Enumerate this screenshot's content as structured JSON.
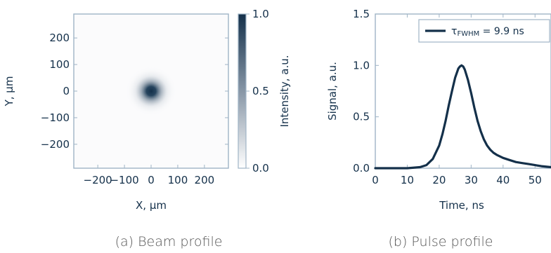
{
  "chart_data": [
    {
      "type": "heatmap",
      "caption": "(a) Beam profile",
      "xlabel": "X, µm",
      "ylabel": "Y, µm",
      "xlim": [
        -290,
        290
      ],
      "ylim": [
        -290,
        290
      ],
      "xticks": [
        "−200",
        "−100",
        "0",
        "100",
        "200"
      ],
      "xtick_values": [
        -200,
        -100,
        0,
        100,
        200
      ],
      "yticks": [
        "200",
        "100",
        "0",
        "−100",
        "−200"
      ],
      "ytick_values": [
        200,
        100,
        0,
        -100,
        -200
      ],
      "colorbar": {
        "label": "Intensity, a.u.",
        "ticks": [
          "1.0",
          "0.5",
          "0.0"
        ],
        "tick_values": [
          1.0,
          0.5,
          0.0
        ],
        "range": [
          0,
          1
        ]
      },
      "beam": {
        "center": [
          0,
          0
        ],
        "sigma_um": 45,
        "peak": 1.0
      },
      "colors": {
        "high": "#14304a",
        "low": "#ffffff",
        "frame": "#9fb4c6"
      }
    },
    {
      "type": "line",
      "caption": "(b) Pulse profile",
      "xlabel": "Time, ns",
      "ylabel": "Signal, a.u.",
      "xlim": [
        0,
        55
      ],
      "ylim": [
        0,
        1.5
      ],
      "xticks": [
        "0",
        "10",
        "20",
        "30",
        "40",
        "50"
      ],
      "xtick_values": [
        0,
        10,
        20,
        30,
        40,
        50
      ],
      "yticks": [
        "1.5",
        "1.0",
        "0.5",
        "0.0"
      ],
      "ytick_values": [
        1.5,
        1.0,
        0.5,
        0.0
      ],
      "legend": {
        "placement": "top-right",
        "text": "τ",
        "subscript": "FWHM",
        "value": " = 9.9 ns"
      },
      "series": [
        {
          "x": [
            0,
            5,
            10,
            14,
            16,
            18,
            20,
            21,
            22,
            23,
            24,
            25,
            26,
            26.5,
            27,
            27.5,
            28,
            29,
            30,
            31,
            32,
            33,
            34,
            35,
            36,
            37,
            38,
            40,
            42,
            44,
            46,
            48,
            50,
            52,
            55
          ],
          "values": [
            0.0,
            0.0,
            0.0,
            0.01,
            0.03,
            0.09,
            0.22,
            0.33,
            0.46,
            0.61,
            0.75,
            0.88,
            0.97,
            0.99,
            1.0,
            0.99,
            0.96,
            0.86,
            0.73,
            0.59,
            0.46,
            0.36,
            0.28,
            0.22,
            0.18,
            0.15,
            0.13,
            0.1,
            0.08,
            0.06,
            0.05,
            0.04,
            0.03,
            0.02,
            0.01
          ]
        }
      ],
      "colors": {
        "line": "#14304a",
        "frame": "#9fb4c6"
      }
    }
  ]
}
